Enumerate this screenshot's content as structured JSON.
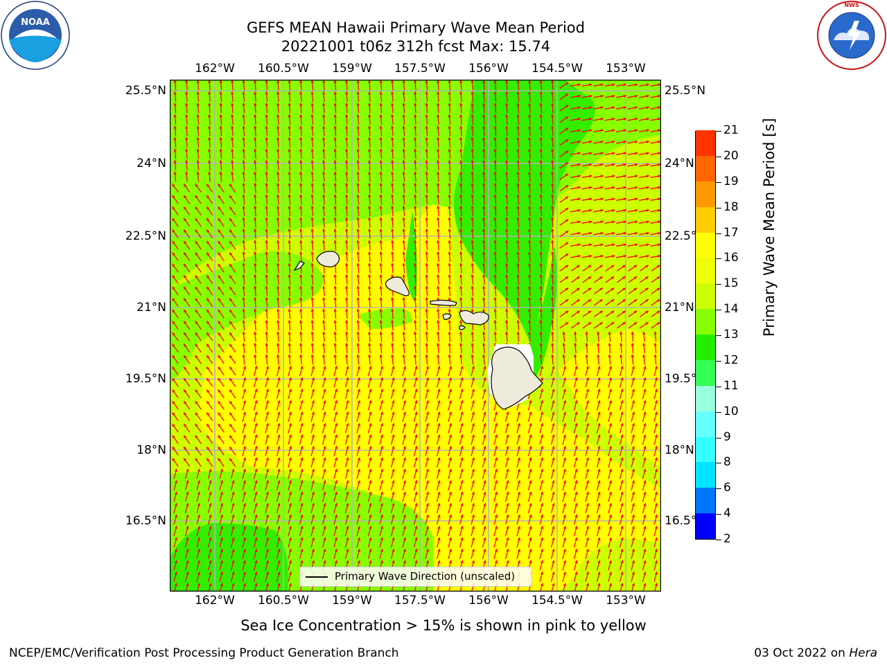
{
  "title_line1": "GEFS MEAN Hawaii Primary Wave Mean Period",
  "title_line2": "20221001 t06z 312h fcst   Max: 15.74",
  "x_ticks": [
    "162°W",
    "160.5°W",
    "159°W",
    "157.5°W",
    "156°W",
    "154.5°W",
    "153°W"
  ],
  "y_ticks": [
    "25.5°N",
    "24°N",
    "22.5°N",
    "21°N",
    "19.5°N",
    "18°N",
    "16.5°N"
  ],
  "colorbar": {
    "label": "Primary Wave Mean Period [s]",
    "ticks": [
      "2",
      "4",
      "6",
      "8",
      "9",
      "10",
      "11",
      "12",
      "13",
      "14",
      "15",
      "16",
      "17",
      "18",
      "19",
      "20",
      "21"
    ],
    "colors": [
      "#0000ff",
      "#0077ff",
      "#00e5ff",
      "#33ffff",
      "#66ffff",
      "#99ffdd",
      "#33ff55",
      "#22ee00",
      "#88ff00",
      "#ccff00",
      "#eeff00",
      "#ffff00",
      "#ffcc00",
      "#ff9900",
      "#ff6600",
      "#ff3300",
      "#ff0000"
    ]
  },
  "legend": "Primary Wave Direction (unscaled)",
  "caption": "Sea Ice Concentration > 15% is shown in pink to yellow",
  "footer_left": "NCEP/EMC/Verification Post Processing Product Generation Branch",
  "footer_right_date": "03 Oct 2022 on",
  "footer_right_machine": "Hera",
  "logos": {
    "left": "NOAA",
    "right": "National Weather Service"
  },
  "colors": {
    "arrow": "#ff0000",
    "grid": "#b4b4b4",
    "land": "#eeeadc"
  }
}
